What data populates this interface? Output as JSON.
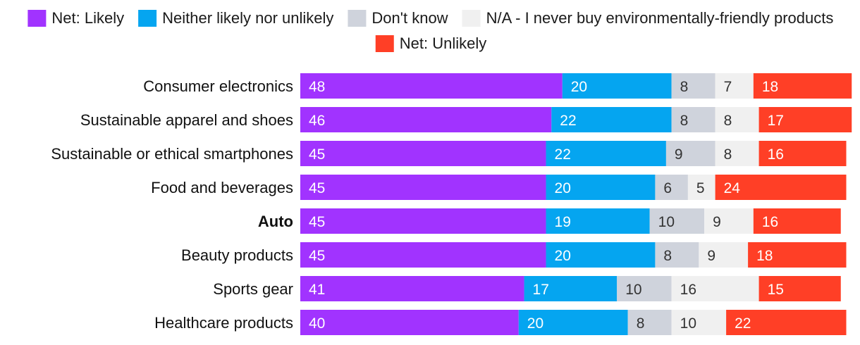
{
  "chart_data": {
    "type": "bar",
    "orientation": "horizontal",
    "stacked": true,
    "title": "",
    "xlabel": "",
    "ylabel": "",
    "legend_position": "top",
    "categories": [
      "Consumer electronics",
      "Sustainable apparel and shoes",
      "Sustainable or ethical smartphones",
      "Food and beverages",
      "Auto",
      "Beauty products",
      "Sports gear",
      "Healthcare products"
    ],
    "highlighted_category": "Auto",
    "series": [
      {
        "name": "Net: Likely",
        "color": "#a133ff",
        "label_color": "#ffffff",
        "values": [
          48,
          46,
          45,
          45,
          45,
          45,
          41,
          40
        ]
      },
      {
        "name": "Neither likely nor unlikely",
        "color": "#05a5f0",
        "label_color": "#ffffff",
        "values": [
          20,
          22,
          22,
          20,
          19,
          20,
          17,
          20
        ]
      },
      {
        "name": "Don't know",
        "color": "#cfd3dc",
        "label_color": "#333333",
        "values": [
          8,
          8,
          9,
          6,
          10,
          8,
          10,
          8
        ]
      },
      {
        "name": "N/A - I never buy environmentally-friendly products",
        "color": "#f0f0f0",
        "label_color": "#333333",
        "values": [
          7,
          8,
          8,
          5,
          9,
          9,
          16,
          10
        ]
      },
      {
        "name": "Net: Unlikely",
        "color": "#ff3f26",
        "label_color": "#ffffff",
        "values": [
          18,
          17,
          16,
          24,
          16,
          18,
          15,
          22
        ]
      }
    ]
  }
}
